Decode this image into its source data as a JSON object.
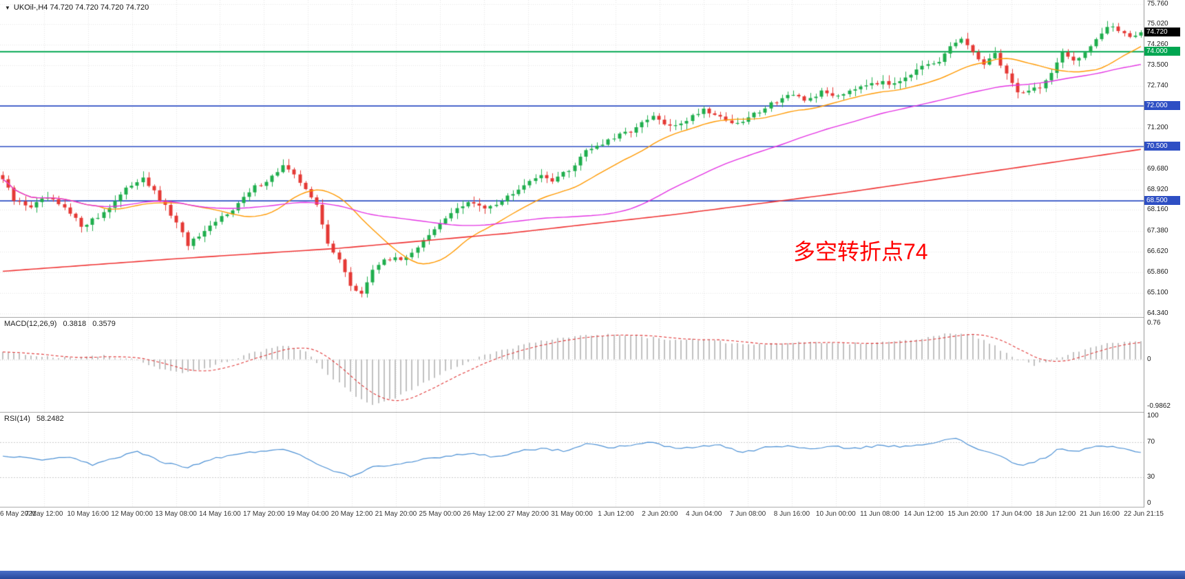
{
  "header": {
    "symbol_line": "UKOil-,H4 74.720 74.720 74.720 74.720"
  },
  "annotation": {
    "text": "多空转折点74",
    "color": "#ff0000"
  },
  "colors": {
    "up": "#1fae4d",
    "down": "#e53935",
    "ma_fast": "#ff9900",
    "ma_mid": "#e332e3",
    "ma_slow": "#ef3333",
    "grid": "#e4e4e4",
    "macd_hist": "#c0c0c0",
    "macd_signal": "#e03636",
    "rsi_line": "#4a8fd4",
    "taskbar": "#2a4da5"
  },
  "time_axis": {
    "labels": [
      "6 May 2021",
      "7 May 12:00",
      "10 May 16:00",
      "12 May 00:00",
      "13 May 08:00",
      "14 May 16:00",
      "17 May 20:00",
      "19 May 04:00",
      "20 May 12:00",
      "21 May 20:00",
      "25 May 00:00",
      "26 May 12:00",
      "27 May 20:00",
      "31 May 00:00",
      "1 Jun 12:00",
      "2 Jun 20:00",
      "4 Jun 04:00",
      "7 Jun 08:00",
      "8 Jun 16:00",
      "10 Jun 00:00",
      "11 Jun 08:00",
      "14 Jun 12:00",
      "15 Jun 20:00",
      "17 Jun 04:00",
      "18 Jun 12:00",
      "21 Jun 16:00",
      "22 Jun 21:15"
    ]
  },
  "chart_data": [
    {
      "type": "candlestick",
      "title": "UKOil-,H4",
      "timeframe": "H4",
      "bars": 204,
      "last_price": 74.72,
      "price_axis": {
        "min": 64.34,
        "max": 75.76,
        "ticks": [
          {
            "text": "75.760",
            "value": 75.76
          },
          {
            "text": "75.020",
            "value": 75.02
          },
          {
            "text": "74.260",
            "value": 74.26
          },
          {
            "text": "73.500",
            "value": 73.5
          },
          {
            "text": "72.740",
            "value": 72.74
          },
          {
            "text": "71.200",
            "value": 71.2
          },
          {
            "text": "69.680",
            "value": 69.68
          },
          {
            "text": "68.920",
            "value": 68.92
          },
          {
            "text": "68.160",
            "value": 68.16
          },
          {
            "text": "67.380",
            "value": 67.38
          },
          {
            "text": "66.620",
            "value": 66.62
          },
          {
            "text": "65.860",
            "value": 65.86
          },
          {
            "text": "65.100",
            "value": 65.1
          },
          {
            "text": "64.340",
            "value": 64.34
          }
        ]
      },
      "levels": [
        {
          "value": 74.72,
          "text": "74.720",
          "line": false,
          "badge_bg": "#000000"
        },
        {
          "value": 74.0,
          "text": "74.000",
          "line": true,
          "color": "#00a651",
          "width": 2
        },
        {
          "value": 72.0,
          "text": "72.000",
          "line": true,
          "color": "#2e4fc4",
          "width": 1.6
        },
        {
          "value": 70.5,
          "text": "70.500",
          "line": true,
          "color": "#2e4fc4",
          "width": 1.6
        },
        {
          "value": 68.5,
          "text": "68.500",
          "line": true,
          "color": "#2e4fc4",
          "width": 1.6
        }
      ],
      "close_keypoints": [
        [
          0,
          69.3
        ],
        [
          2,
          68.5
        ],
        [
          5,
          68.3
        ],
        [
          8,
          68.6
        ],
        [
          11,
          68.2
        ],
        [
          14,
          67.6
        ],
        [
          17,
          67.9
        ],
        [
          20,
          68.5
        ],
        [
          23,
          69.1
        ],
        [
          25,
          69.4
        ],
        [
          27,
          68.8
        ],
        [
          30,
          68.0
        ],
        [
          33,
          66.9
        ],
        [
          36,
          67.3
        ],
        [
          39,
          67.9
        ],
        [
          42,
          68.4
        ],
        [
          45,
          69.0
        ],
        [
          48,
          69.4
        ],
        [
          50,
          69.8
        ],
        [
          52,
          69.4
        ],
        [
          54,
          69.0
        ],
        [
          56,
          68.3
        ],
        [
          58,
          66.9
        ],
        [
          60,
          66.4
        ],
        [
          62,
          65.3
        ],
        [
          64,
          65.1
        ],
        [
          66,
          65.9
        ],
        [
          68,
          66.4
        ],
        [
          71,
          66.3
        ],
        [
          74,
          66.8
        ],
        [
          77,
          67.4
        ],
        [
          80,
          68.1
        ],
        [
          83,
          68.4
        ],
        [
          86,
          68.3
        ],
        [
          89,
          68.5
        ],
        [
          92,
          69.0
        ],
        [
          95,
          69.4
        ],
        [
          98,
          69.3
        ],
        [
          101,
          69.6
        ],
        [
          104,
          70.4
        ],
        [
          107,
          70.6
        ],
        [
          110,
          70.9
        ],
        [
          113,
          71.2
        ],
        [
          116,
          71.6
        ],
        [
          119,
          71.2
        ],
        [
          122,
          71.5
        ],
        [
          125,
          71.9
        ],
        [
          128,
          71.6
        ],
        [
          131,
          71.3
        ],
        [
          134,
          71.7
        ],
        [
          137,
          72.1
        ],
        [
          140,
          72.4
        ],
        [
          143,
          72.2
        ],
        [
          146,
          72.5
        ],
        [
          149,
          72.4
        ],
        [
          152,
          72.7
        ],
        [
          155,
          72.9
        ],
        [
          158,
          72.8
        ],
        [
          161,
          73.1
        ],
        [
          164,
          73.4
        ],
        [
          167,
          73.6
        ],
        [
          169,
          74.2
        ],
        [
          171,
          74.5
        ],
        [
          173,
          73.9
        ],
        [
          175,
          73.6
        ],
        [
          177,
          73.9
        ],
        [
          179,
          73.2
        ],
        [
          181,
          72.5
        ],
        [
          183,
          72.6
        ],
        [
          185,
          72.7
        ],
        [
          187,
          73.2
        ],
        [
          189,
          73.9
        ],
        [
          191,
          73.7
        ],
        [
          193,
          74.0
        ],
        [
          195,
          74.5
        ],
        [
          197,
          74.9
        ],
        [
          199,
          74.8
        ],
        [
          201,
          74.6
        ],
        [
          203,
          74.72
        ]
      ],
      "ma_fast_period": 18,
      "ma_mid_period": 55,
      "ma_slow_keypoints": [
        [
          0,
          65.9
        ],
        [
          30,
          66.35
        ],
        [
          60,
          66.75
        ],
        [
          90,
          67.3
        ],
        [
          120,
          68.0
        ],
        [
          150,
          68.8
        ],
        [
          180,
          69.7
        ],
        [
          203,
          70.4
        ]
      ]
    },
    {
      "type": "macd",
      "title": "MACD(12,26,9)",
      "value": 0.3818,
      "value_text": "0.3818",
      "signal": 0.3579,
      "signal_text": "0.3579",
      "axis": {
        "max": 0.76,
        "min": -0.9862,
        "ticks": [
          {
            "text": "0.76",
            "value": 0.76
          },
          {
            "text": "0",
            "value": 0
          },
          {
            "text": "-0.9862",
            "value": -0.9862
          }
        ]
      },
      "hist_keypoints": [
        [
          0,
          0.15
        ],
        [
          6,
          0.08
        ],
        [
          12,
          0.02
        ],
        [
          18,
          0.08
        ],
        [
          24,
          -0.02
        ],
        [
          28,
          -0.2
        ],
        [
          33,
          -0.28
        ],
        [
          38,
          -0.12
        ],
        [
          44,
          0.12
        ],
        [
          50,
          0.3
        ],
        [
          54,
          0.15
        ],
        [
          58,
          -0.3
        ],
        [
          62,
          -0.7
        ],
        [
          66,
          -0.96
        ],
        [
          70,
          -0.8
        ],
        [
          75,
          -0.5
        ],
        [
          80,
          -0.2
        ],
        [
          85,
          0.05
        ],
        [
          90,
          0.22
        ],
        [
          96,
          0.38
        ],
        [
          102,
          0.48
        ],
        [
          108,
          0.52
        ],
        [
          114,
          0.48
        ],
        [
          120,
          0.4
        ],
        [
          126,
          0.42
        ],
        [
          132,
          0.3
        ],
        [
          138,
          0.32
        ],
        [
          144,
          0.36
        ],
        [
          150,
          0.33
        ],
        [
          156,
          0.36
        ],
        [
          162,
          0.42
        ],
        [
          168,
          0.52
        ],
        [
          172,
          0.55
        ],
        [
          176,
          0.35
        ],
        [
          180,
          0.05
        ],
        [
          184,
          -0.12
        ],
        [
          188,
          0.02
        ],
        [
          192,
          0.18
        ],
        [
          196,
          0.3
        ],
        [
          200,
          0.38
        ],
        [
          203,
          0.3818
        ]
      ]
    },
    {
      "type": "rsi",
      "title": "RSI(14)",
      "value": 58.2482,
      "value_text": "58.2482",
      "levels": [
        70,
        30
      ],
      "axis": {
        "max": 100,
        "min": 0,
        "ticks": [
          {
            "text": "100",
            "value": 100
          },
          {
            "text": "70",
            "value": 70
          },
          {
            "text": "30",
            "value": 30
          },
          {
            "text": "0",
            "value": 0
          }
        ]
      },
      "keypoints": [
        [
          0,
          55
        ],
        [
          6,
          50
        ],
        [
          12,
          52
        ],
        [
          16,
          44
        ],
        [
          20,
          52
        ],
        [
          24,
          60
        ],
        [
          28,
          48
        ],
        [
          33,
          41
        ],
        [
          38,
          52
        ],
        [
          44,
          58
        ],
        [
          50,
          63
        ],
        [
          54,
          52
        ],
        [
          58,
          40
        ],
        [
          62,
          31
        ],
        [
          66,
          42
        ],
        [
          70,
          45
        ],
        [
          75,
          50
        ],
        [
          80,
          55
        ],
        [
          84,
          57
        ],
        [
          88,
          53
        ],
        [
          92,
          60
        ],
        [
          96,
          63
        ],
        [
          100,
          60
        ],
        [
          104,
          68
        ],
        [
          108,
          64
        ],
        [
          112,
          66
        ],
        [
          116,
          70
        ],
        [
          120,
          62
        ],
        [
          124,
          65
        ],
        [
          128,
          67
        ],
        [
          132,
          58
        ],
        [
          136,
          64
        ],
        [
          140,
          66
        ],
        [
          144,
          62
        ],
        [
          148,
          65
        ],
        [
          152,
          63
        ],
        [
          156,
          66
        ],
        [
          160,
          65
        ],
        [
          164,
          68
        ],
        [
          168,
          72
        ],
        [
          170,
          74
        ],
        [
          174,
          62
        ],
        [
          178,
          55
        ],
        [
          180,
          46
        ],
        [
          182,
          43
        ],
        [
          184,
          48
        ],
        [
          186,
          52
        ],
        [
          188,
          62
        ],
        [
          192,
          60
        ],
        [
          196,
          66
        ],
        [
          200,
          62
        ],
        [
          203,
          58.2482
        ]
      ]
    }
  ]
}
